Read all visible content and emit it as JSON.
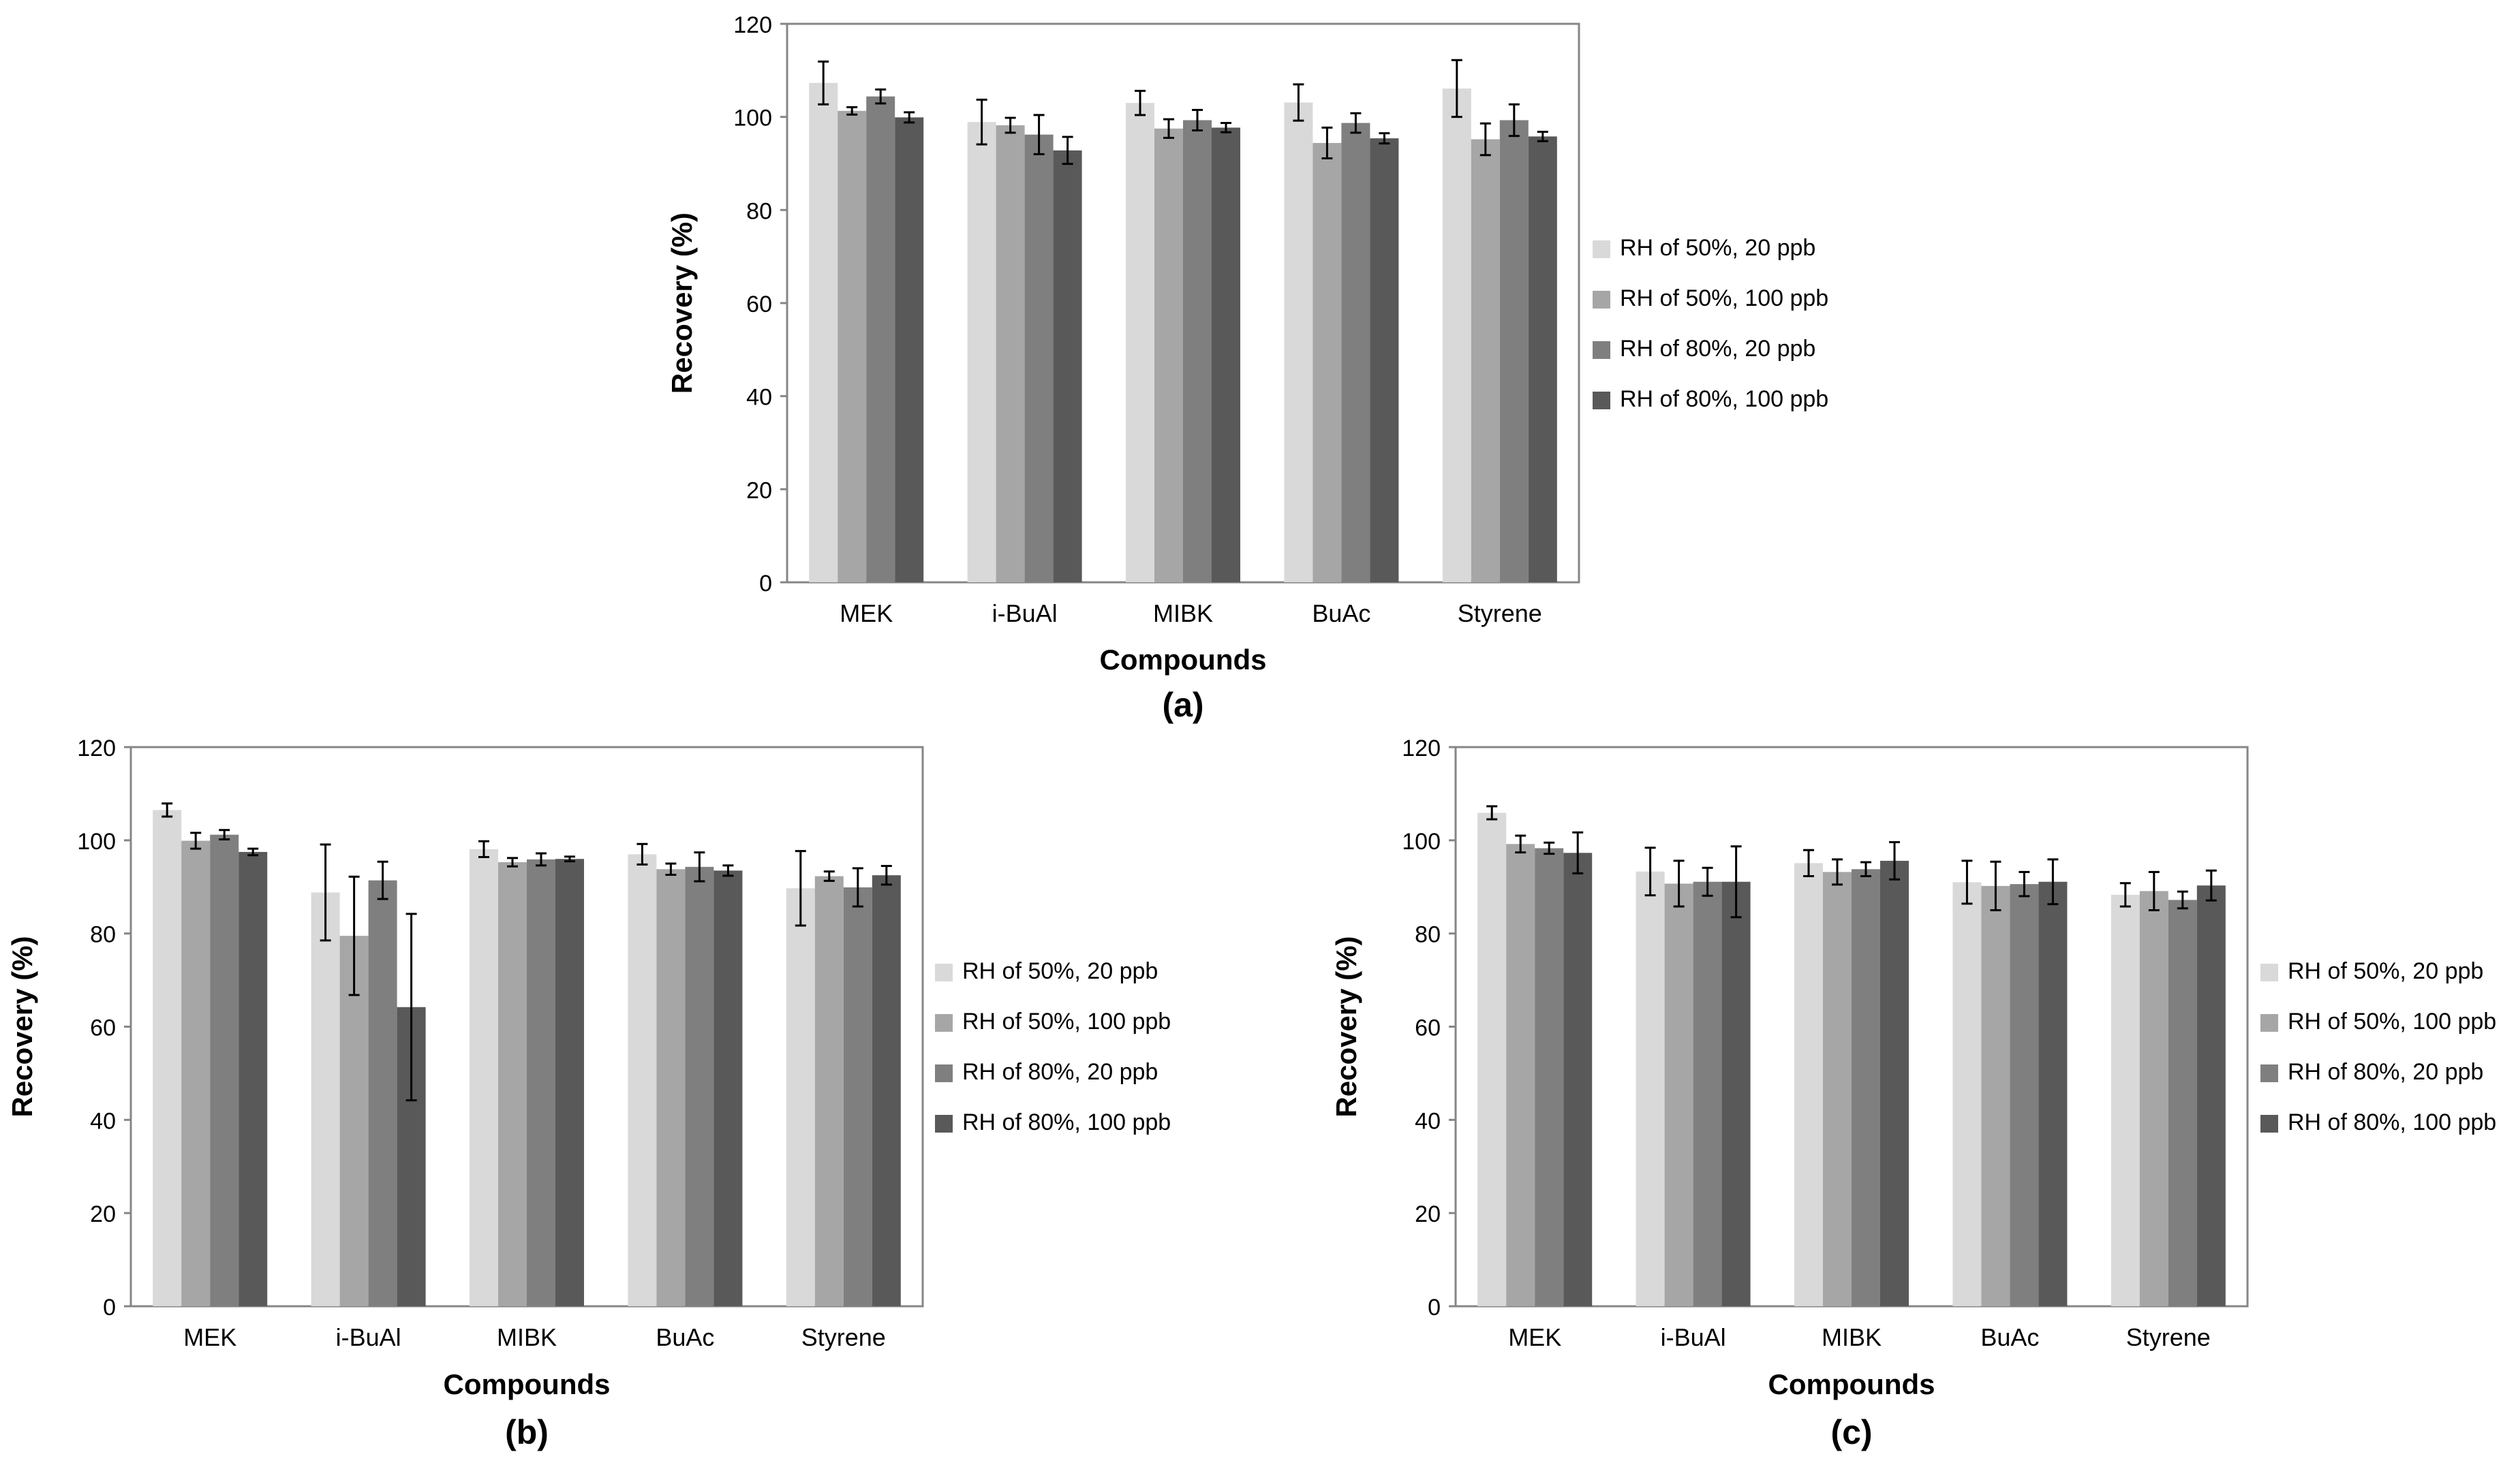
{
  "chart_data": [
    {
      "type": "bar",
      "panel_label": "(a)",
      "xlabel": "Compounds",
      "ylabel": "Recovery (%)",
      "ylim": [
        0,
        120
      ],
      "ytick_step": 20,
      "grid": false,
      "legend_position": "right",
      "categories": [
        "MEK",
        "i-BuAl",
        "MIBK",
        "BuAc",
        "Styrene"
      ],
      "series": [
        {
          "name": "RH of 50%, 20 ppb",
          "color": "#d9d9d9",
          "values": [
            107.3,
            98.9,
            103.0,
            103.1,
            106.1
          ],
          "errors": [
            4.6,
            4.8,
            2.6,
            3.9,
            6.1
          ]
        },
        {
          "name": "RH of 50%, 100 ppb",
          "color": "#a6a6a6",
          "values": [
            101.3,
            98.2,
            97.5,
            94.4,
            95.2
          ],
          "errors": [
            0.8,
            1.6,
            2.0,
            3.3,
            3.4
          ]
        },
        {
          "name": "RH of 80%, 20 ppb",
          "color": "#7f7f7f",
          "values": [
            104.4,
            96.2,
            99.3,
            98.7,
            99.3
          ],
          "errors": [
            1.5,
            4.2,
            2.2,
            2.1,
            3.4
          ]
        },
        {
          "name": "RH of 80%, 100 ppb",
          "color": "#595959",
          "values": [
            99.9,
            92.8,
            97.7,
            95.4,
            95.8
          ],
          "errors": [
            1.1,
            2.9,
            1.0,
            1.1,
            1.0
          ]
        }
      ]
    },
    {
      "type": "bar",
      "panel_label": "(b)",
      "xlabel": "Compounds",
      "ylabel": "Recovery (%)",
      "ylim": [
        0,
        120
      ],
      "ytick_step": 20,
      "grid": false,
      "legend_position": "right",
      "categories": [
        "MEK",
        "i-BuAl",
        "MIBK",
        "BuAc",
        "Styrene"
      ],
      "series": [
        {
          "name": "RH of 50%, 20 ppb",
          "color": "#d9d9d9",
          "values": [
            106.5,
            88.8,
            98.1,
            97.0,
            89.7
          ],
          "errors": [
            1.4,
            10.3,
            1.7,
            2.2,
            8.0
          ]
        },
        {
          "name": "RH of 50%, 100 ppb",
          "color": "#a6a6a6",
          "values": [
            99.9,
            79.5,
            95.3,
            93.8,
            92.3
          ],
          "errors": [
            1.7,
            12.7,
            0.9,
            1.2,
            1.0
          ]
        },
        {
          "name": "RH of 80%, 20 ppb",
          "color": "#7f7f7f",
          "values": [
            101.2,
            91.4,
            95.9,
            94.3,
            89.9
          ],
          "errors": [
            1.0,
            4.0,
            1.3,
            3.1,
            4.1
          ]
        },
        {
          "name": "RH of 80%, 100 ppb",
          "color": "#595959",
          "values": [
            97.5,
            64.2,
            96.0,
            93.5,
            92.5
          ],
          "errors": [
            0.7,
            20.0,
            0.5,
            1.1,
            2.0
          ]
        }
      ]
    },
    {
      "type": "bar",
      "panel_label": "(c)",
      "xlabel": "Compounds",
      "ylabel": "Recovery (%)",
      "ylim": [
        0,
        120
      ],
      "ytick_step": 20,
      "grid": false,
      "legend_position": "right",
      "categories": [
        "MEK",
        "i-BuAl",
        "MIBK",
        "BuAc",
        "Styrene"
      ],
      "series": [
        {
          "name": "RH of 50%, 20 ppb",
          "color": "#d9d9d9",
          "values": [
            105.9,
            93.3,
            95.1,
            91.0,
            88.3
          ],
          "errors": [
            1.4,
            5.1,
            2.8,
            4.6,
            2.5
          ]
        },
        {
          "name": "RH of 50%, 100 ppb",
          "color": "#a6a6a6",
          "values": [
            99.2,
            90.7,
            93.2,
            90.2,
            89.1
          ],
          "errors": [
            1.8,
            4.9,
            2.7,
            5.2,
            4.1
          ]
        },
        {
          "name": "RH of 80%, 20 ppb",
          "color": "#7f7f7f",
          "values": [
            98.3,
            91.1,
            93.8,
            90.6,
            87.2
          ],
          "errors": [
            1.2,
            3.0,
            1.5,
            2.6,
            1.8
          ]
        },
        {
          "name": "RH of 80%, 100 ppb",
          "color": "#595959",
          "values": [
            97.3,
            91.1,
            95.6,
            91.1,
            90.3
          ],
          "errors": [
            4.4,
            7.6,
            4.0,
            4.8,
            3.2
          ]
        }
      ]
    }
  ]
}
